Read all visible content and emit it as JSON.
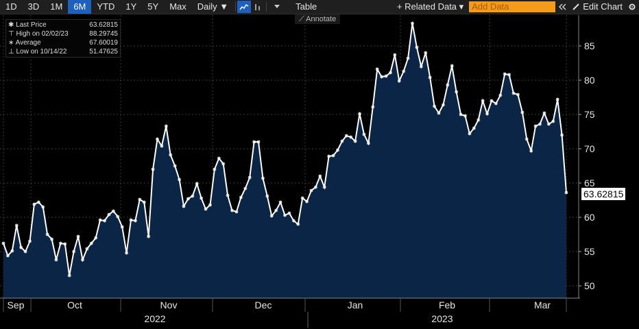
{
  "toolbar": {
    "periods": [
      "1D",
      "3D",
      "1M",
      "6M",
      "YTD",
      "1Y",
      "5Y",
      "Max"
    ],
    "active_period": "6M",
    "frequency": "Daily ▼",
    "table_label": "Table",
    "related_data_label": "+ Related Data ▾",
    "add_data_placeholder": "Add Data",
    "edit_chart_label": "Edit Chart",
    "annotate_label": "Annotate"
  },
  "legend": {
    "last_price_label": "Last Price",
    "last_price_value": "63.62815",
    "high_label": "High on 02/02/23",
    "high_value": "88.29745",
    "average_label": "Average",
    "average_value": "67.60019",
    "low_label": "Low on 10/14/22",
    "low_value": "51.47625"
  },
  "price_tag": "63.62815",
  "colors": {
    "line": "#ffffff",
    "fill": "#0a2545",
    "accent": "#1f5fbf",
    "add_data": "#f59b1b"
  },
  "chart_data": {
    "type": "area",
    "x_labels": [
      "Sep",
      "Oct",
      "Nov",
      "Dec",
      "Jan",
      "Feb",
      "Mar"
    ],
    "year_labels": [
      "2022",
      "2023"
    ],
    "y_ticks": [
      50,
      55,
      60,
      65,
      70,
      75,
      80,
      85
    ],
    "ylim": [
      48.5,
      89.5
    ],
    "grid": true,
    "values": [
      56.2,
      54.4,
      55.1,
      58.8,
      55.6,
      55.0,
      56.5,
      61.9,
      62.2,
      61.5,
      57.5,
      56.8,
      53.8,
      56.2,
      56.1,
      51.5,
      55.0,
      57.2,
      53.8,
      55.4,
      56.2,
      57.0,
      59.6,
      59.5,
      60.4,
      60.9,
      60.1,
      58.6,
      54.8,
      59.6,
      59.5,
      62.6,
      62.2,
      57.2,
      67.0,
      71.4,
      70.4,
      73.3,
      69.1,
      67.5,
      65.5,
      61.6,
      62.7,
      63.1,
      64.9,
      62.8,
      61.2,
      61.8,
      67.0,
      68.6,
      67.8,
      63.2,
      61.0,
      60.8,
      62.9,
      64.2,
      65.8,
      71.0,
      71.0,
      65.7,
      63.1,
      60.2,
      61.0,
      62.2,
      60.3,
      60.6,
      59.5,
      59.0,
      62.8,
      62.3,
      63.9,
      64.4,
      66.0,
      64.4,
      68.9,
      69.0,
      69.8,
      71.1,
      71.9,
      71.7,
      71.1,
      75.1,
      72.1,
      70.8,
      76.1,
      81.6,
      80.5,
      80.6,
      81.1,
      83.7,
      79.9,
      81.3,
      83.2,
      88.3,
      84.8,
      82.0,
      84.0,
      80.4,
      76.2,
      75.2,
      76.4,
      79.3,
      82.1,
      78.3,
      75.0,
      74.8,
      72.2,
      73.0,
      74.2,
      77.0,
      75.1,
      77.0,
      76.6,
      77.8,
      80.9,
      80.8,
      78.1,
      77.9,
      75.3,
      71.4,
      69.7,
      73.3,
      73.6,
      75.2,
      73.6,
      74.0,
      77.2,
      72.0,
      63.6
    ]
  }
}
